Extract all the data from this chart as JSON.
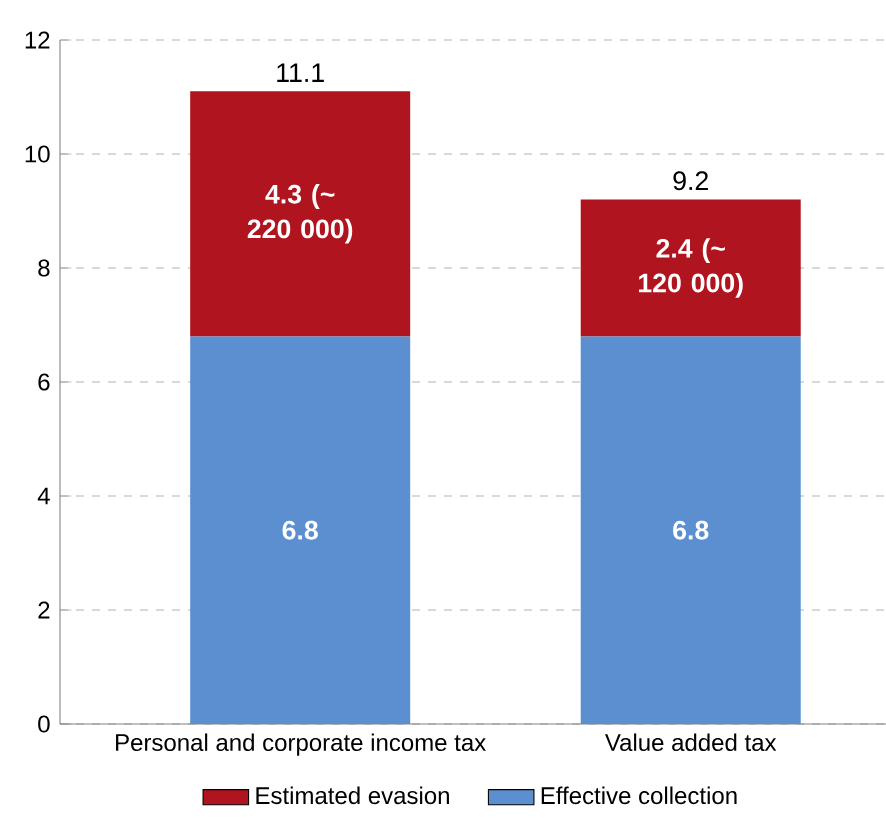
{
  "chart_data": {
    "type": "bar",
    "stacked": true,
    "categories": [
      "Personal and corporate income tax",
      "Value added tax"
    ],
    "series": [
      {
        "name": "Effective collection",
        "color": "#5b8fd0",
        "values": [
          6.8,
          6.8
        ],
        "value_labels": [
          "6.8",
          "6.8"
        ]
      },
      {
        "name": "Estimated evasion",
        "color": "#b0141e",
        "values": [
          4.3,
          2.4
        ],
        "value_labels": [
          "4.3 (~ 220 000)",
          "2.4 (~ 120 000)"
        ]
      }
    ],
    "totals": [
      "11.1",
      "9.2"
    ],
    "ylim": [
      0,
      12
    ],
    "yticks": [
      0,
      2,
      4,
      6,
      8,
      10,
      12
    ],
    "grid": "y",
    "legend": "bottom"
  }
}
